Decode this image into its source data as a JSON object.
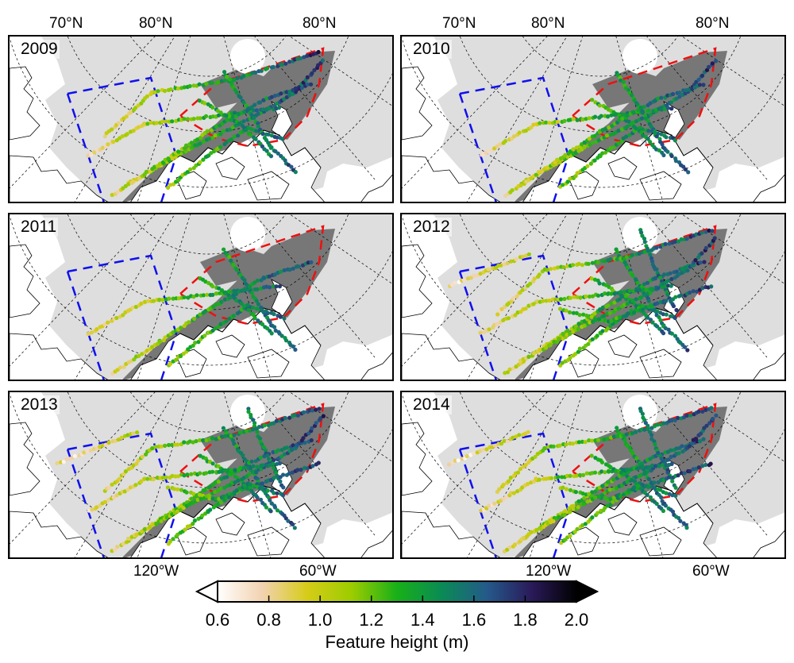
{
  "top_lat_labels": [
    "70°N",
    "80°N",
    "80°N",
    "70°N",
    "80°N",
    "80°N"
  ],
  "bottom_lon_labels": [
    "120°W",
    "60°W",
    "120°W",
    "60°W"
  ],
  "panels": [
    {
      "year": "2009",
      "intensity": 0.7
    },
    {
      "year": "2010",
      "intensity": 0.6
    },
    {
      "year": "2011",
      "intensity": 0.5
    },
    {
      "year": "2012",
      "intensity": 1.0
    },
    {
      "year": "2013",
      "intensity": 1.0
    },
    {
      "year": "2014",
      "intensity": 1.0
    }
  ],
  "colorbar": {
    "title": "Feature height (m)",
    "ticks": [
      "0.6",
      "0.8",
      "1.0",
      "1.2",
      "1.4",
      "1.6",
      "1.8",
      "2.0"
    ],
    "min": 0.6,
    "max": 2.0,
    "extend": "both",
    "colors": [
      "#ffffff",
      "#f2d2b0",
      "#d6cc18",
      "#9ccc00",
      "#18b018",
      "#0a8a55",
      "#245a8a",
      "#2a1a5a",
      "#000000"
    ]
  },
  "map_colors": {
    "land": "#ffffff",
    "sea_ice_light": "#dedede",
    "sea_ice_dark": "#777777",
    "blue_box": "#1010ee",
    "red_box": "#ee1010"
  }
}
